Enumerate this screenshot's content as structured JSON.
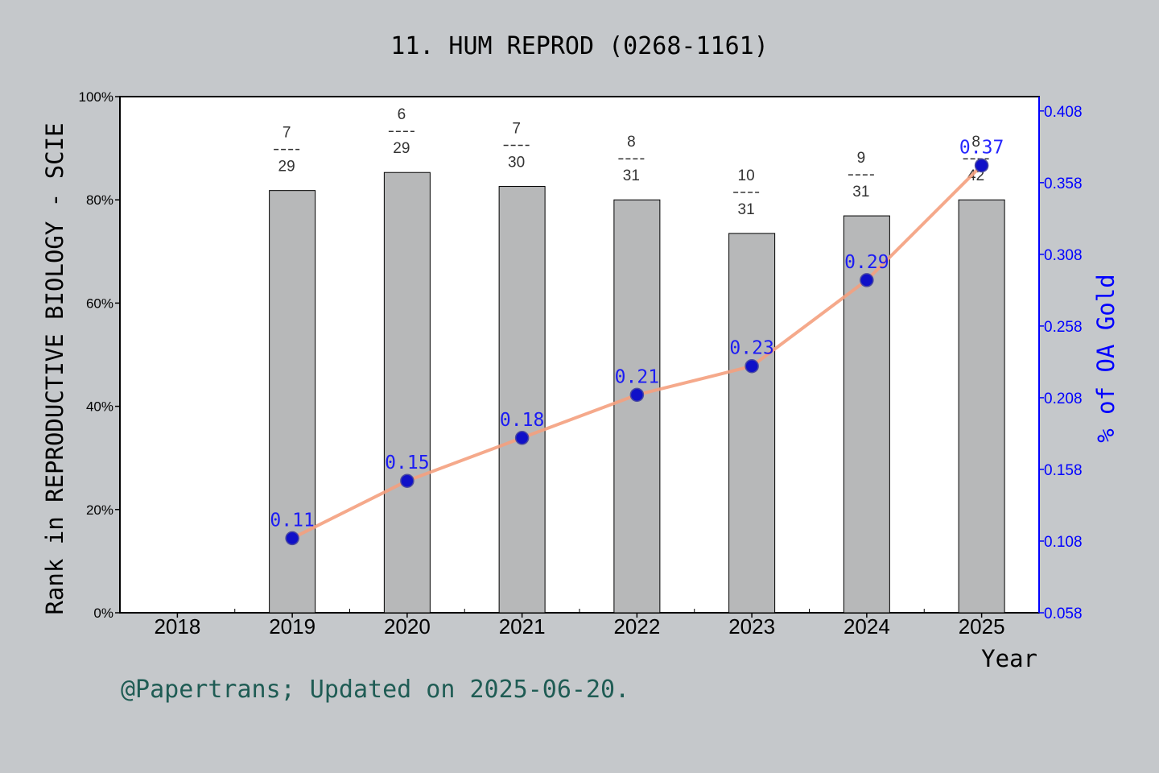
{
  "colors": {
    "background": "#c5c8cb",
    "plot_bg": "#ffffff",
    "bar": "#b7b8b9",
    "line": "#f4a07e",
    "point": "#1010c8",
    "right_axis": "#0000ff",
    "footer": "#1f5c54",
    "text": "#000000"
  },
  "footer": "@Papertrans; Updated on 2025-06-20.",
  "chart_data": {
    "type": "bar",
    "title": "11. HUM REPROD (0268-1161)",
    "xlabel": "Year",
    "ylabel": "Rank in REPRODUCTIVE BIOLOGY - SCIE",
    "y2label": "% of OA Gold",
    "categories": [
      "2018",
      "2019",
      "2020",
      "2021",
      "2022",
      "2023",
      "2024",
      "2025"
    ],
    "ylim": [
      0,
      100
    ],
    "yticks": [
      "0%",
      "20%",
      "40%",
      "60%",
      "80%",
      "100%"
    ],
    "y2lim": [
      0.058,
      0.418
    ],
    "y2ticks": [
      "0.058",
      "0.108",
      "0.158",
      "0.208",
      "0.258",
      "0.308",
      "0.358",
      "0.408"
    ],
    "grid": false,
    "series": [
      {
        "kind": "bar",
        "axis": "left",
        "values": [
          null,
          81.8,
          85.3,
          82.6,
          80.0,
          73.5,
          76.9,
          80.0
        ],
        "rank_labels": [
          null,
          {
            "num": "7",
            "den": "29"
          },
          {
            "num": "6",
            "den": "29"
          },
          {
            "num": "7",
            "den": "30"
          },
          {
            "num": "8",
            "den": "31"
          },
          {
            "num": "10",
            "den": "31"
          },
          {
            "num": "9",
            "den": "31"
          },
          {
            "num": "8",
            "den": "42"
          }
        ]
      },
      {
        "kind": "line",
        "axis": "right",
        "values": [
          null,
          0.11,
          0.15,
          0.18,
          0.21,
          0.23,
          0.29,
          0.37
        ],
        "value_labels": [
          null,
          "0.11",
          "0.15",
          "0.18",
          "0.21",
          "0.23",
          "0.29",
          "0.37"
        ]
      }
    ]
  }
}
